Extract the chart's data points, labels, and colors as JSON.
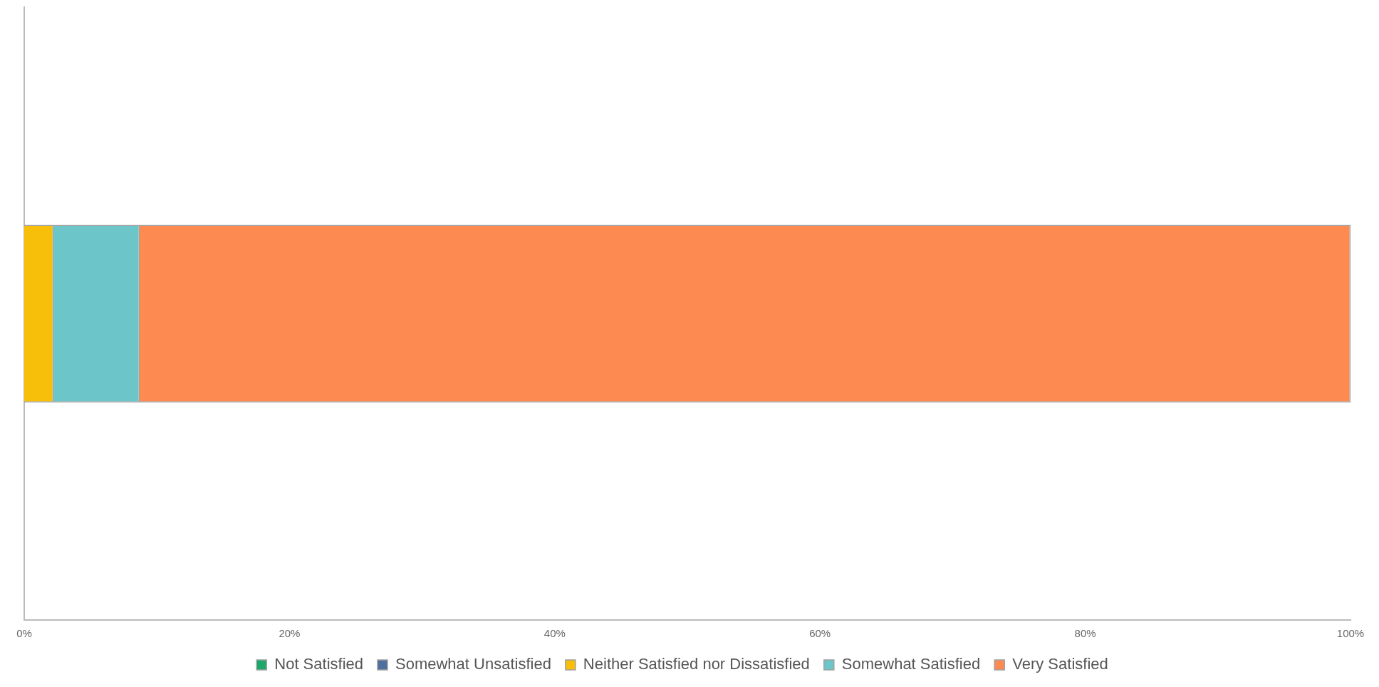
{
  "chart_data": {
    "type": "bar",
    "orientation": "horizontal",
    "stacked": true,
    "categories": [
      null
    ],
    "series": [
      {
        "name": "Not Satisfied",
        "color": "#1ba86a",
        "values": [
          0
        ]
      },
      {
        "name": "Somewhat Unsatisfied",
        "color": "#4f6f9c",
        "values": [
          0
        ]
      },
      {
        "name": "Neither Satisfied nor Dissatisfied",
        "color": "#f7be0a",
        "values": [
          2.2
        ]
      },
      {
        "name": "Somewhat Satisfied",
        "color": "#6cc6c9",
        "values": [
          6.5
        ]
      },
      {
        "name": "Very Satisfied",
        "color": "#fd8b51",
        "values": [
          91.3
        ]
      }
    ],
    "xlim": [
      0,
      100
    ],
    "xticks": [
      {
        "value": 0,
        "label": "0%"
      },
      {
        "value": 20,
        "label": "20%"
      },
      {
        "value": 40,
        "label": "40%"
      },
      {
        "value": 60,
        "label": "60%"
      },
      {
        "value": 80,
        "label": "80%"
      },
      {
        "value": 100,
        "label": "100%"
      }
    ],
    "grid": false,
    "legend": "bottom"
  }
}
